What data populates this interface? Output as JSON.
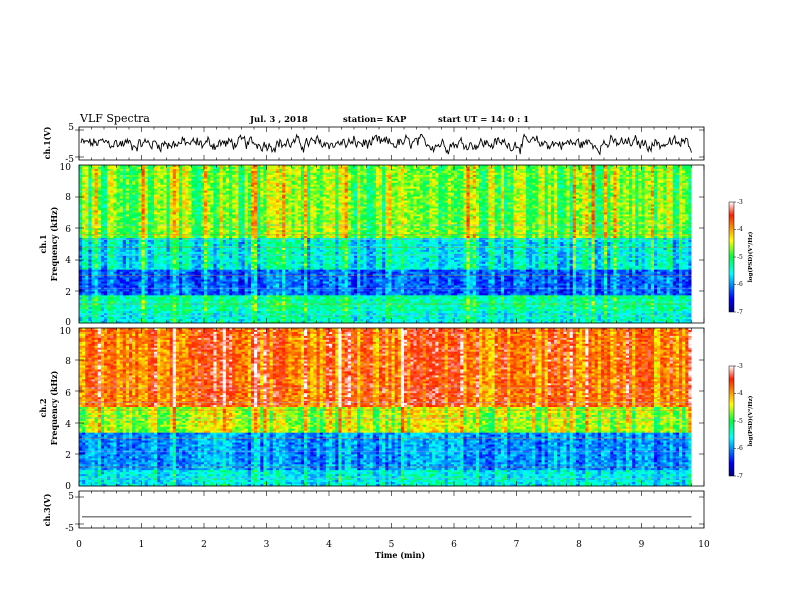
{
  "header": {
    "title": "VLF Spectra",
    "date": "Jul. 3 , 2018",
    "station": "station= KAP",
    "start": "start UT = 14: 0 : 1"
  },
  "chart_data": [
    {
      "type": "line",
      "ylabel": "ch.1(V)",
      "ylim": [
        -5,
        5
      ],
      "yticks": [
        "5",
        "-5"
      ],
      "xlim": [
        0,
        10
      ],
      "description_values": "noisy waveform oscillating roughly between -2 and 2 V over 0-9.8 min"
    },
    {
      "type": "heatmap",
      "ylabel_lines": [
        "ch.1",
        "Frequency (kHz)"
      ],
      "ylim": [
        0,
        10
      ],
      "yticks": [
        "0",
        "2",
        "4",
        "6",
        "8",
        "10"
      ],
      "xlim": [
        0,
        9.8
      ],
      "colorbar": {
        "min": -7,
        "max": -3,
        "ticks": [
          "-3",
          "-4",
          "-5",
          "-6",
          "-7"
        ],
        "label": "log(PSD)(V²/Hz)"
      },
      "bands_kHz": [
        {
          "from": 0,
          "to": 0.8,
          "level": -5.5
        },
        {
          "from": 0.8,
          "to": 1.8,
          "level": -5.3
        },
        {
          "from": 1.8,
          "to": 3.4,
          "level": -6.2
        },
        {
          "from": 3.4,
          "to": 5.4,
          "level": -5.6
        },
        {
          "from": 5.4,
          "to": 10,
          "level": -4.8
        }
      ]
    },
    {
      "type": "heatmap",
      "ylabel_lines": [
        "ch.2",
        "Frequency (kHz)"
      ],
      "ylim": [
        0,
        10
      ],
      "yticks": [
        "0",
        "2",
        "4",
        "6",
        "8",
        "10"
      ],
      "xlim": [
        0,
        9.8
      ],
      "colorbar": {
        "min": -7,
        "max": -3,
        "ticks": [
          "-3",
          "-4",
          "-5",
          "-6",
          "-7"
        ],
        "label": "log(PSD)(V²/Hz)"
      },
      "bands_kHz": [
        {
          "from": 0,
          "to": 1.0,
          "level": -5.6
        },
        {
          "from": 1.0,
          "to": 3.4,
          "level": -6.0
        },
        {
          "from": 3.4,
          "to": 5.0,
          "level": -4.6
        },
        {
          "from": 5.0,
          "to": 10,
          "level": -3.8
        }
      ]
    },
    {
      "type": "line",
      "ylabel": "ch.3(V)",
      "ylim": [
        -5,
        5
      ],
      "yticks": [
        "5",
        "-5"
      ],
      "xlim": [
        0,
        10
      ],
      "xlabel": "Time (min)",
      "xticks": [
        "0",
        "1",
        "2",
        "3",
        "4",
        "5",
        "6",
        "7",
        "8",
        "9",
        "10"
      ],
      "values": [
        -2,
        -2
      ]
    }
  ]
}
